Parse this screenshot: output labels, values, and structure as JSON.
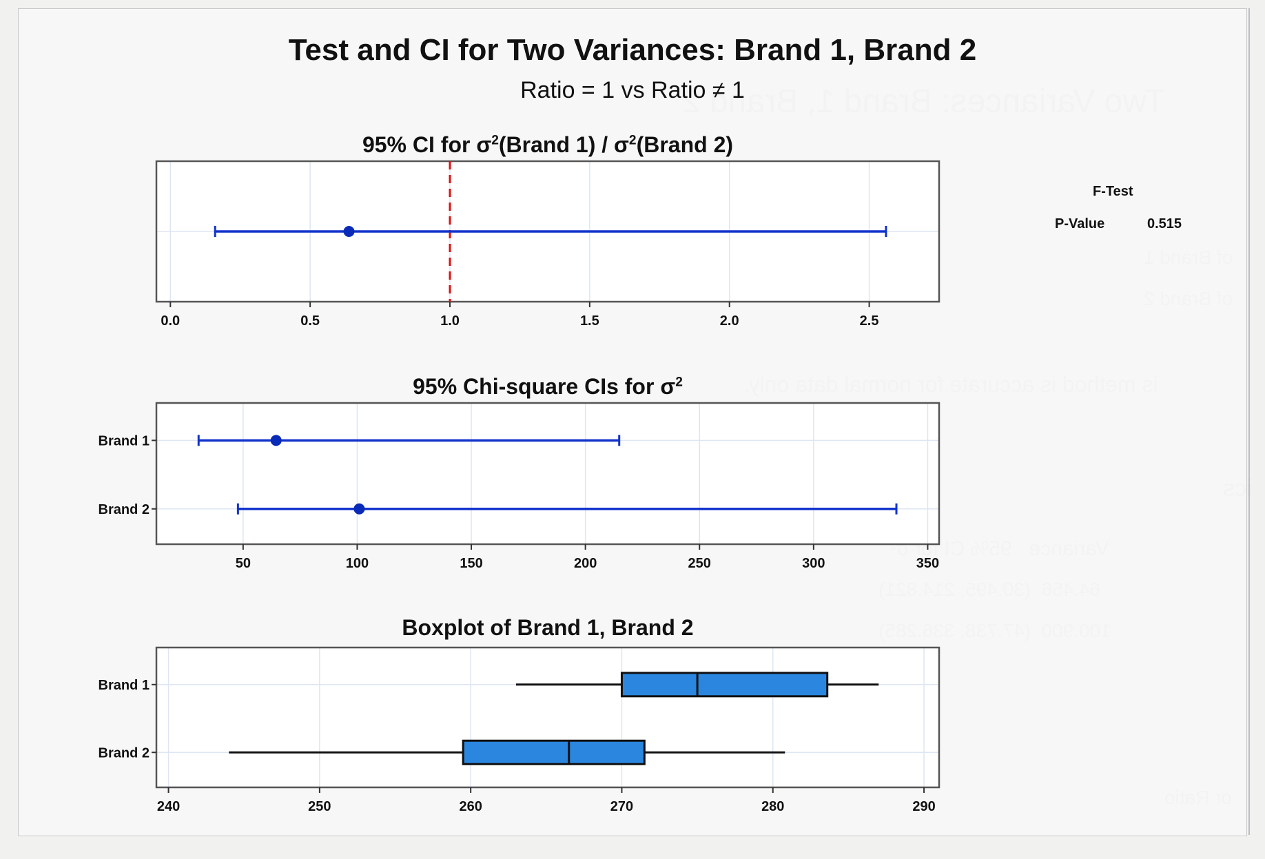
{
  "window": {
    "main_title": "Test and CI for Two Variances: Brand 1, Brand 2",
    "subtitle": "Ratio = 1 vs Ratio ≠ 1"
  },
  "ftest": {
    "header": "F-Test",
    "pvalue_label": "P-Value",
    "pvalue": "0.515"
  },
  "colors": {
    "ci_line": "#1133cc",
    "reference_line": "#e01010",
    "box_fill": "#2a86de",
    "frame": "#555555",
    "grid": "#dde6f2"
  },
  "chart_data": [
    {
      "type": "interval",
      "title_prefix": "95% CI for σ",
      "title_mid": "(Brand 1) / σ",
      "title_suffix": "(Brand 2)",
      "title": "95% CI for σ²(Brand 1) / σ²(Brand 2)",
      "xlim": [
        -0.05,
        2.75
      ],
      "xticks": [
        0.0,
        0.5,
        1.0,
        1.5,
        2.0,
        2.5
      ],
      "xtick_labels": [
        "0.0",
        "0.5",
        "1.0",
        "1.5",
        "2.0",
        "2.5"
      ],
      "reference_line": 1.0,
      "series": [
        {
          "name": "Ratio",
          "estimate": 0.639,
          "lower": 0.16,
          "upper": 2.56
        }
      ],
      "grid": true
    },
    {
      "type": "interval",
      "title_prefix": "95% Chi-square CIs for σ",
      "title": "95% Chi-square CIs for σ²",
      "xlim": [
        12,
        355
      ],
      "xticks": [
        50,
        100,
        150,
        200,
        250,
        300,
        350
      ],
      "xtick_labels": [
        "50",
        "100",
        "150",
        "200",
        "250",
        "300",
        "350"
      ],
      "categories": [
        "Brand 1",
        "Brand 2"
      ],
      "series": [
        {
          "name": "Brand 1",
          "estimate": 64.456,
          "lower": 30.495,
          "upper": 214.821
        },
        {
          "name": "Brand 2",
          "estimate": 100.9,
          "lower": 47.738,
          "upper": 336.285
        }
      ],
      "grid": true
    },
    {
      "type": "boxplot",
      "title": "Boxplot of Brand 1, Brand 2",
      "xlim": [
        239.2,
        291.0
      ],
      "xticks": [
        240,
        250,
        260,
        270,
        280,
        290
      ],
      "xtick_labels": [
        "240",
        "250",
        "260",
        "270",
        "280",
        "290"
      ],
      "categories": [
        "Brand 1",
        "Brand 2"
      ],
      "series": [
        {
          "name": "Brand 1",
          "min": 263,
          "q1": 270,
          "median": 275,
          "q3": 283.6,
          "max": 287
        },
        {
          "name": "Brand 2",
          "min": 244,
          "q1": 259.5,
          "median": 266.5,
          "q3": 271.5,
          "max": 280.8
        }
      ],
      "grid": true
    }
  ]
}
